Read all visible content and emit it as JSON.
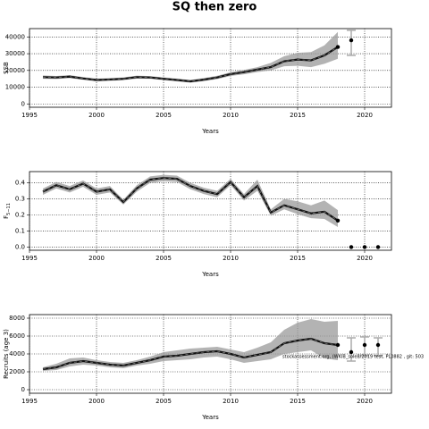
{
  "title": "SQ then zero",
  "annotation": "stockassessment.org, (WKIB_sole8/2019 test, PL0882 , git: 503",
  "chart_data": [
    {
      "type": "line",
      "ylabel": "SSB",
      "xlabel": "Years",
      "xlim": [
        1995,
        2022
      ],
      "xticks": [
        1995,
        2000,
        2005,
        2010,
        2015,
        2020
      ],
      "ylim": [
        -2000,
        45000
      ],
      "yticks": [
        0,
        10000,
        20000,
        30000,
        40000
      ],
      "grid": true,
      "x": [
        1996,
        1997,
        1998,
        1999,
        2000,
        2001,
        2002,
        2003,
        2004,
        2005,
        2006,
        2007,
        2008,
        2009,
        2010,
        2011,
        2012,
        2013,
        2014,
        2015,
        2016,
        2017,
        2018
      ],
      "values": [
        16000,
        15800,
        16300,
        15200,
        14300,
        14600,
        15000,
        16000,
        15800,
        15000,
        14300,
        13500,
        14500,
        15800,
        17800,
        19000,
        20500,
        22000,
        25500,
        26500,
        26000,
        29000,
        34000
      ],
      "lower": [
        15000,
        14900,
        15400,
        14400,
        13500,
        13800,
        14200,
        15100,
        15000,
        14200,
        13500,
        12700,
        13600,
        14800,
        16700,
        17700,
        19000,
        20000,
        22500,
        22800,
        22000,
        24000,
        27000
      ],
      "upper": [
        17000,
        16700,
        17200,
        16000,
        15100,
        15400,
        15800,
        16900,
        16600,
        15800,
        15100,
        14300,
        15400,
        16800,
        18900,
        20300,
        22000,
        24500,
        28500,
        30500,
        31000,
        35000,
        43000
      ],
      "projection": {
        "x": [
          2019
        ],
        "values": [
          38000
        ],
        "lower": [
          29000
        ],
        "upper": [
          44000
        ]
      }
    },
    {
      "type": "line",
      "ylabel": "F",
      "ylabel_sub": "5−11",
      "xlabel": "Years",
      "xlim": [
        1995,
        2022
      ],
      "xticks": [
        1995,
        2000,
        2005,
        2010,
        2015,
        2020
      ],
      "ylim": [
        -0.02,
        0.47
      ],
      "yticks": [
        {
          "value": 0,
          "label": "0.0"
        },
        0.1,
        0.2,
        0.3,
        0.4
      ],
      "grid": true,
      "x": [
        1996,
        1997,
        1998,
        1999,
        2000,
        2001,
        2002,
        2003,
        2004,
        2005,
        2006,
        2007,
        2008,
        2009,
        2010,
        2011,
        2012,
        2013,
        2014,
        2015,
        2016,
        2017,
        2018
      ],
      "values": [
        0.345,
        0.385,
        0.36,
        0.395,
        0.345,
        0.36,
        0.28,
        0.365,
        0.42,
        0.43,
        0.425,
        0.38,
        0.35,
        0.33,
        0.405,
        0.31,
        0.38,
        0.215,
        0.26,
        0.235,
        0.21,
        0.22,
        0.165
      ],
      "lower": [
        0.325,
        0.365,
        0.34,
        0.375,
        0.325,
        0.34,
        0.265,
        0.345,
        0.4,
        0.41,
        0.405,
        0.36,
        0.33,
        0.31,
        0.385,
        0.29,
        0.35,
        0.195,
        0.235,
        0.205,
        0.18,
        0.175,
        0.125
      ],
      "upper": [
        0.365,
        0.405,
        0.38,
        0.415,
        0.365,
        0.38,
        0.295,
        0.385,
        0.44,
        0.45,
        0.445,
        0.4,
        0.37,
        0.35,
        0.425,
        0.33,
        0.42,
        0.235,
        0.3,
        0.285,
        0.26,
        0.29,
        0.23
      ],
      "projection": {
        "x": [
          2019,
          2020,
          2021
        ],
        "values": [
          0,
          0,
          0
        ]
      }
    },
    {
      "type": "line",
      "ylabel": "Recruits (age 3)",
      "xlabel": "Years",
      "xlim": [
        1995,
        2022
      ],
      "xticks": [
        1995,
        2000,
        2005,
        2010,
        2015,
        2020
      ],
      "ylim": [
        -400,
        8400
      ],
      "yticks": [
        0,
        2000,
        4000,
        6000,
        8000
      ],
      "grid": true,
      "x": [
        1996,
        1997,
        1998,
        1999,
        2000,
        2001,
        2002,
        2003,
        2004,
        2005,
        2006,
        2007,
        2008,
        2009,
        2010,
        2011,
        2012,
        2013,
        2014,
        2015,
        2016,
        2017,
        2018
      ],
      "values": [
        2300,
        2500,
        3000,
        3200,
        3000,
        2800,
        2700,
        3000,
        3300,
        3700,
        3800,
        4000,
        4200,
        4300,
        4000,
        3600,
        3900,
        4200,
        5200,
        5500,
        5700,
        5200,
        5000
      ],
      "lower": [
        2100,
        2200,
        2600,
        2800,
        2700,
        2500,
        2400,
        2700,
        2900,
        3200,
        3300,
        3400,
        3600,
        3700,
        3400,
        3000,
        3200,
        3400,
        4000,
        4200,
        4400,
        3500,
        3300
      ],
      "upper": [
        2500,
        2900,
        3500,
        3600,
        3300,
        3100,
        3000,
        3300,
        3700,
        4200,
        4400,
        4600,
        4700,
        4800,
        4500,
        4200,
        4700,
        5300,
        6700,
        7500,
        7900,
        7600,
        7700
      ],
      "projection": {
        "x": [
          2019,
          2020,
          2021
        ],
        "values": [
          4200,
          5000,
          5000
        ],
        "lower": [
          3200,
          3800,
          3800
        ],
        "upper": [
          5800,
          5900,
          5800
        ]
      }
    }
  ]
}
